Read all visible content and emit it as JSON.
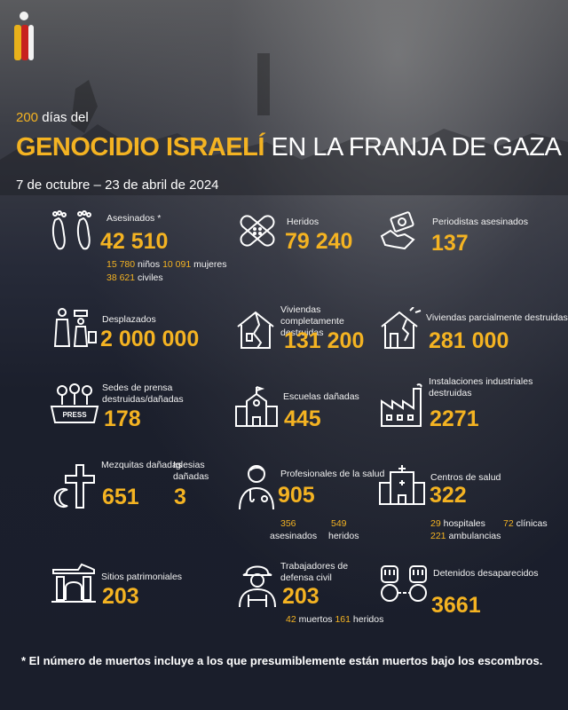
{
  "header": {
    "days_number": "200",
    "days_text": " días del",
    "title_highlight": "GENOCIDIO ISRAELÍ",
    "title_rest": " EN LA FRANJA DE GAZA",
    "date_range": "7 de octubre – 23 de abril de 2024"
  },
  "stats": {
    "killed": {
      "label": "Asesinados *",
      "value": "42 510",
      "children_num": "15 780",
      "children_label": " niños",
      "women_num": " 10 091",
      "women_label": " mujeres",
      "civilians_num": "38 621",
      "civilians_label": " civiles"
    },
    "injured": {
      "label": "Heridos",
      "value": "79 240"
    },
    "journalists": {
      "label": "Periodistas asesinados",
      "value": "137"
    },
    "displaced": {
      "label": "Desplazados",
      "value": "2 000 000"
    },
    "homes_destroyed": {
      "label": "Viviendas completamente destruidas",
      "value": "131 200"
    },
    "homes_partial": {
      "label": "Viviendas parcialmente destruidas",
      "value": "281 000"
    },
    "press_hq": {
      "label": "Sedes de prensa destruidas/dañadas",
      "value": "178"
    },
    "schools": {
      "label": "Escuelas dañadas",
      "value": "445"
    },
    "industrial": {
      "label": "Instalaciones industriales destruidas",
      "value": "2271"
    },
    "mosques": {
      "label": "Mezquitas dañadas",
      "value": "651"
    },
    "churches": {
      "label": "Iglesias dañadas",
      "value": "3"
    },
    "health_workers": {
      "label": "Profesionales de la salud",
      "value": "905",
      "killed_num": "356",
      "killed_label": "asesinados",
      "injured_num": "549",
      "injured_label": "heridos"
    },
    "health_centers": {
      "label": "Centros de salud",
      "value": "322",
      "hospitals_num": "29",
      "hospitals_label": " hospitales",
      "clinics_num": "72",
      "clinics_label": " clínicas",
      "ambulances_num": "221",
      "ambulances_label": " ambulancias"
    },
    "heritage": {
      "label": "Sitios patrimoniales",
      "value": "203"
    },
    "civil_defense": {
      "label": "Trabajadores de defensa civil",
      "value": "203",
      "dead_num": "42",
      "dead_label": " muertos ",
      "injured_num": "161",
      "injured_label": " heridos"
    },
    "detained": {
      "label": "Detenidos desaparecidos",
      "value": "3661"
    }
  },
  "footnote": "* El número de muertos incluye a los que presumiblemente están muertos bajo los escombros.",
  "colors": {
    "accent": "#f4b322",
    "background": "#1b1f2c",
    "text": "#ffffff"
  }
}
